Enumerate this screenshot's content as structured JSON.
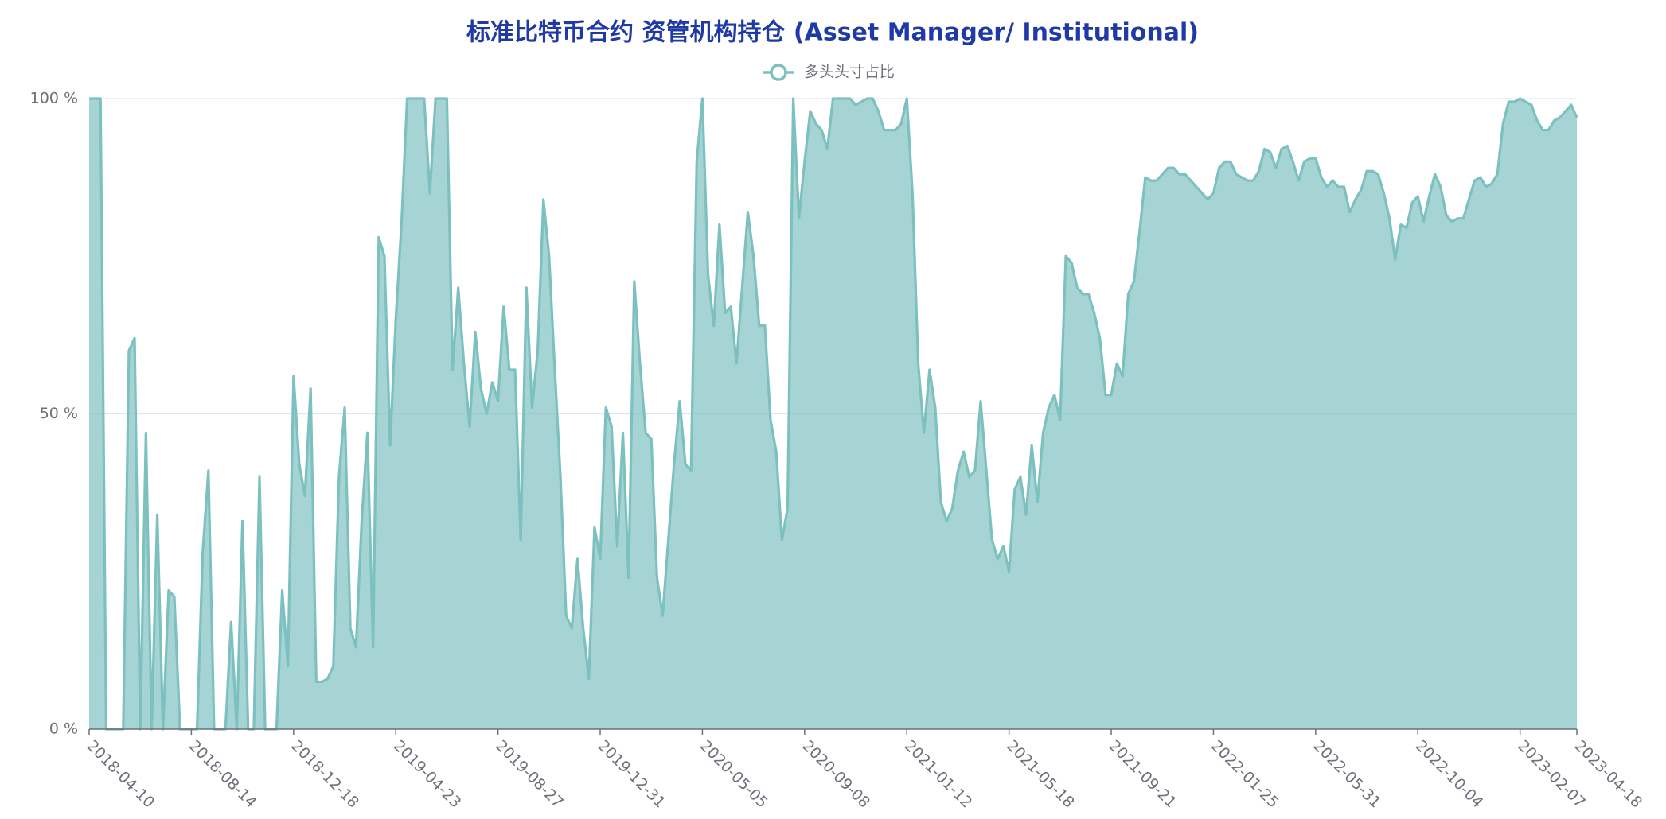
{
  "chart_data": {
    "type": "area",
    "title": "标准比特币合约 资管机构持仓 (Asset Manager/ Institutional)",
    "categories": [
      "2018-04-10",
      null,
      null,
      null,
      null,
      null,
      null,
      null,
      null,
      null,
      null,
      null,
      null,
      null,
      null,
      null,
      null,
      null,
      "2018-08-14",
      null,
      null,
      null,
      null,
      null,
      null,
      null,
      null,
      null,
      null,
      null,
      null,
      null,
      null,
      null,
      null,
      null,
      "2018-12-18",
      null,
      null,
      null,
      null,
      null,
      null,
      null,
      null,
      null,
      null,
      null,
      null,
      null,
      null,
      null,
      null,
      null,
      "2019-04-23",
      null,
      null,
      null,
      null,
      null,
      null,
      null,
      null,
      null,
      null,
      null,
      null,
      null,
      null,
      null,
      null,
      null,
      "2019-08-27",
      null,
      null,
      null,
      null,
      null,
      null,
      null,
      null,
      null,
      null,
      null,
      null,
      null,
      null,
      null,
      null,
      null,
      "2019-12-31",
      null,
      null,
      null,
      null,
      null,
      null,
      null,
      null,
      null,
      null,
      null,
      null,
      null,
      null,
      null,
      null,
      null,
      "2020-05-05",
      null,
      null,
      null,
      null,
      null,
      null,
      null,
      null,
      null,
      null,
      null,
      null,
      null,
      null,
      null,
      null,
      null,
      "2020-09-08",
      null,
      null,
      null,
      null,
      null,
      null,
      null,
      null,
      null,
      null,
      null,
      null,
      null,
      null,
      null,
      null,
      null,
      "2021-01-12",
      null,
      null,
      null,
      null,
      null,
      null,
      null,
      null,
      null,
      null,
      null,
      null,
      null,
      null,
      null,
      null,
      null,
      "2021-05-18",
      null,
      null,
      null,
      null,
      null,
      null,
      null,
      null,
      null,
      null,
      null,
      null,
      null,
      null,
      null,
      null,
      null,
      "2021-09-21",
      null,
      null,
      null,
      null,
      null,
      null,
      null,
      null,
      null,
      null,
      null,
      null,
      null,
      null,
      null,
      null,
      null,
      "2022-01-25",
      null,
      null,
      null,
      null,
      null,
      null,
      null,
      null,
      null,
      null,
      null,
      null,
      null,
      null,
      null,
      null,
      null,
      "2022-05-31",
      null,
      null,
      null,
      null,
      null,
      null,
      null,
      null,
      null,
      null,
      null,
      null,
      null,
      null,
      null,
      null,
      null,
      "2022-10-04",
      null,
      null,
      null,
      null,
      null,
      null,
      null,
      null,
      null,
      null,
      null,
      null,
      null,
      null,
      null,
      null,
      null,
      "2023-02-07",
      null,
      null,
      null,
      null,
      null,
      null,
      null,
      null,
      null,
      "2023-04-18"
    ],
    "series": [
      {
        "name": "多头头寸占比",
        "color": "#7cc0bf",
        "values": [
          100,
          100,
          100,
          0,
          0,
          0,
          0,
          60,
          62,
          0,
          47,
          0,
          34,
          0,
          22,
          21,
          0,
          0,
          0,
          0,
          28,
          41,
          0,
          0,
          0,
          17,
          0,
          33,
          0,
          0,
          40,
          0,
          0,
          0,
          22,
          10,
          56,
          42,
          37,
          54,
          7.5,
          7.5,
          8,
          10,
          40,
          51,
          16,
          13,
          33,
          47,
          13,
          78,
          75,
          45,
          65,
          80,
          100,
          100,
          100,
          100,
          85,
          100,
          100,
          100,
          57,
          70,
          58,
          48,
          63,
          54,
          50,
          55,
          52,
          67,
          57,
          57,
          30,
          70,
          51,
          60,
          84,
          75,
          57,
          40,
          18,
          16,
          27,
          16,
          8,
          32,
          27,
          51,
          48,
          29,
          47,
          24,
          71,
          58,
          47,
          46,
          24,
          18,
          30,
          42,
          52,
          42,
          41,
          90,
          100,
          72,
          64,
          80,
          66,
          67,
          58,
          70,
          82,
          75,
          64,
          64,
          49,
          44,
          30,
          35,
          100,
          81,
          90,
          98,
          96,
          95,
          92,
          100,
          100,
          100,
          100,
          99,
          99.5,
          100,
          100,
          98,
          95,
          95,
          95,
          96,
          100,
          85,
          58,
          47,
          57,
          51,
          36,
          33,
          35,
          41,
          44,
          40,
          41,
          52,
          41,
          30,
          27,
          29,
          25,
          38,
          40,
          34,
          45,
          36,
          47,
          51,
          53,
          49,
          75,
          74,
          70,
          69,
          69,
          66,
          62,
          53,
          53,
          58,
          56,
          69,
          71,
          79,
          87.5,
          87,
          87,
          88,
          89,
          89,
          88,
          88,
          87,
          86,
          85,
          84,
          85,
          89,
          90,
          90,
          88,
          87.5,
          87,
          87,
          88.5,
          92,
          91.5,
          89,
          92,
          92.5,
          90,
          87,
          90,
          90.5,
          90.5,
          87.5,
          86,
          87,
          86,
          86,
          82,
          84,
          85.5,
          88.5,
          88.5,
          88,
          85,
          81,
          74.5,
          80,
          79.5,
          83.5,
          84.5,
          80.5,
          84.5,
          88,
          86,
          81.5,
          80.5,
          81,
          81,
          84,
          87,
          87.5,
          86,
          86.5,
          88,
          96,
          99.5,
          99.5,
          100,
          99.5,
          99,
          96.5,
          95,
          95,
          96.5,
          97,
          98,
          99,
          97
        ]
      }
    ],
    "ylim": [
      0,
      100
    ],
    "yticks": [
      {
        "value": 0,
        "label": "0 %"
      },
      {
        "value": 50,
        "label": "50 %"
      },
      {
        "value": 100,
        "label": "100 %"
      }
    ],
    "grid": true
  }
}
